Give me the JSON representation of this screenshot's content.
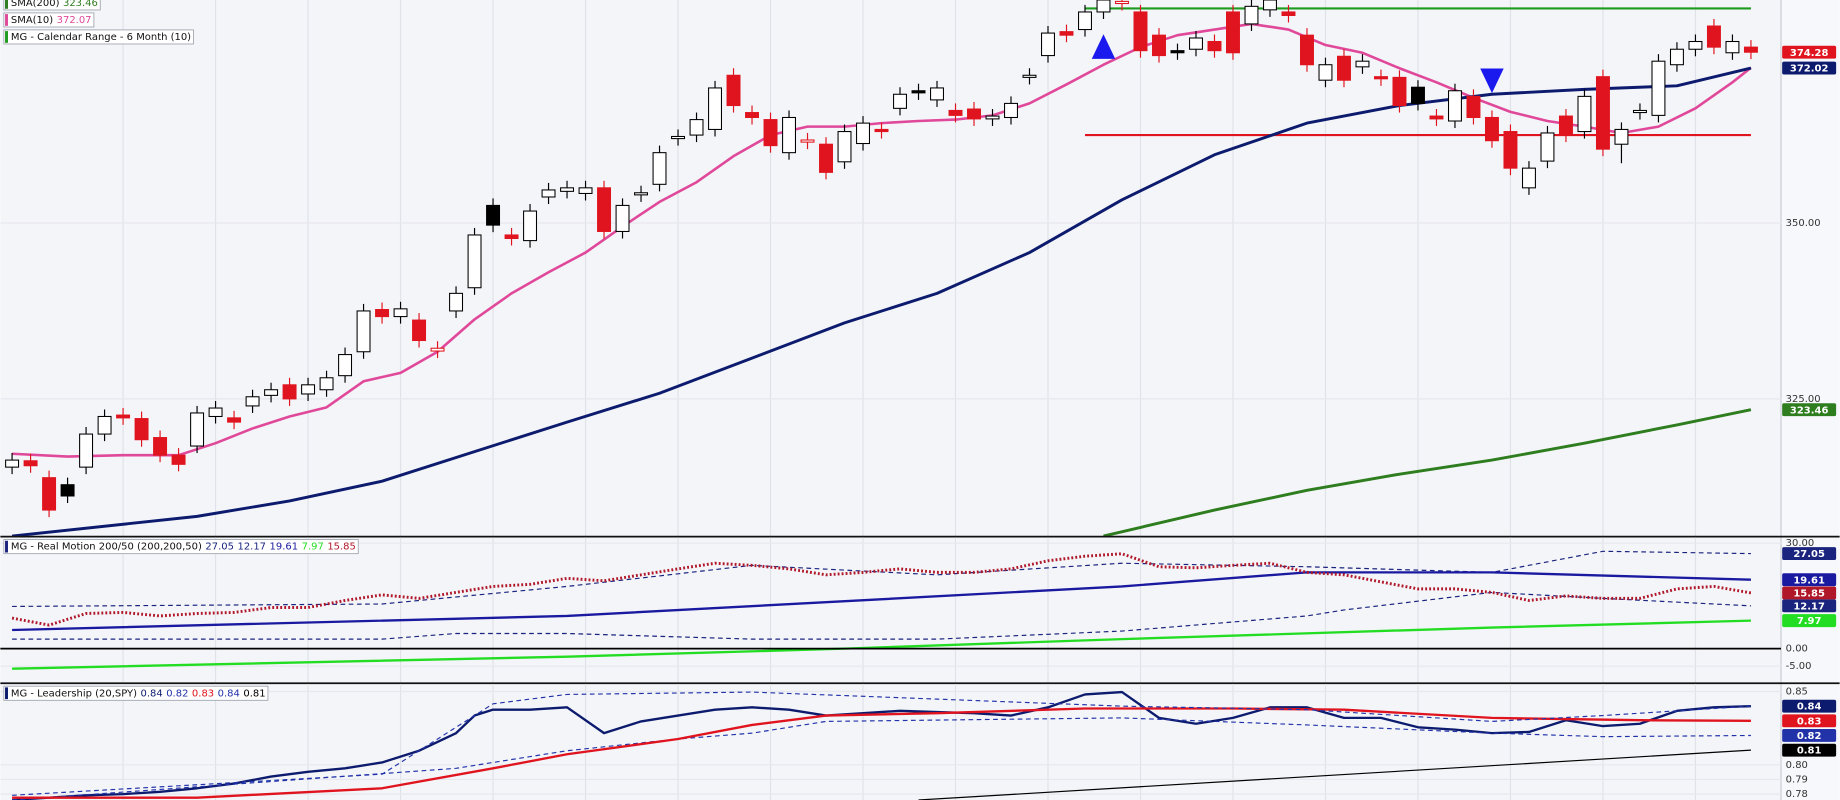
{
  "chart_data": [
    {
      "type": "candlestick",
      "ylim": [
        305.5,
        381.7
      ],
      "yticks": [
        {
          "value": 325,
          "label": "325.00"
        },
        {
          "value": 350,
          "label": "350.00"
        }
      ],
      "up_color": "#000000",
      "down_color": "#e0141e",
      "hollow_fill": "#ffffff",
      "open": [
        315.3,
        316.2,
        313.8,
        312.8,
        315.3,
        320.0,
        322.7,
        322.2,
        319.5,
        317.0,
        318.3,
        322.5,
        322.3,
        324.0,
        325.5,
        327.0,
        325.7,
        326.3,
        328.3,
        331.7,
        337.7,
        336.7,
        336.2,
        331.8,
        337.5,
        340.8,
        352.5,
        348.3,
        347.5,
        353.7,
        354.5,
        354.2,
        355.0,
        348.8,
        354.0,
        355.5,
        362.0,
        362.5,
        363.3,
        371.0,
        365.7,
        364.7,
        360.0,
        361.5,
        361.2,
        358.7,
        361.3,
        363.3,
        366.3,
        368.8,
        367.5,
        366.0,
        366.2,
        364.8,
        365.0,
        370.7,
        373.8,
        377.2,
        377.5,
        380.0,
        381.2,
        380.0,
        376.7,
        374.5,
        374.7,
        375.8,
        380.0,
        378.3,
        380.3,
        380.0,
        376.7,
        370.3,
        373.7,
        372.2,
        370.8,
        370.7,
        369.3,
        365.2,
        364.5,
        368.0,
        365.0,
        363.0,
        355.0,
        358.8,
        365.2,
        363.0,
        370.8,
        361.2,
        365.7,
        365.3,
        372.5,
        374.7,
        378.0,
        374.2,
        375.0
      ],
      "high": [
        317.3,
        317.2,
        314.8,
        313.8,
        321.0,
        323.5,
        323.7,
        323.2,
        320.5,
        318.0,
        324.0,
        324.7,
        323.3,
        326.3,
        327.3,
        328.0,
        328.0,
        329.0,
        332.3,
        338.5,
        338.7,
        338.8,
        337.2,
        333.2,
        341.0,
        349.3,
        353.5,
        349.3,
        352.7,
        355.7,
        356.0,
        356.0,
        356.0,
        353.5,
        355.3,
        361.0,
        363.3,
        365.7,
        370.2,
        372.0,
        366.7,
        365.7,
        366.0,
        362.8,
        362.2,
        364.0,
        365.2,
        364.3,
        369.3,
        369.8,
        370.2,
        367.0,
        367.2,
        366.2,
        368.0,
        372.0,
        378.0,
        378.2,
        381.0,
        382.5,
        382.5,
        381.0,
        377.7,
        375.5,
        377.3,
        376.8,
        381.0,
        381.8,
        382.5,
        381.0,
        377.7,
        373.5,
        374.7,
        374.0,
        371.8,
        371.7,
        370.3,
        366.2,
        369.8,
        369.0,
        366.0,
        364.0,
        358.8,
        363.8,
        366.2,
        369.0,
        371.8,
        364.3,
        367.0,
        374.0,
        375.7,
        376.8,
        379.0,
        376.8,
        376.0
      ],
      "low": [
        314.3,
        314.5,
        308.2,
        310.2,
        314.3,
        319.0,
        321.3,
        318.2,
        316.0,
        314.7,
        317.3,
        321.5,
        320.7,
        323.0,
        324.5,
        324.0,
        324.7,
        325.3,
        327.3,
        330.7,
        335.7,
        335.7,
        332.3,
        330.8,
        336.5,
        339.8,
        348.7,
        346.8,
        346.5,
        352.7,
        353.5,
        353.2,
        347.8,
        347.8,
        353.0,
        354.5,
        361.0,
        361.5,
        362.3,
        365.7,
        364.0,
        360.0,
        359.0,
        360.5,
        356.2,
        357.7,
        360.3,
        362.0,
        365.3,
        367.5,
        366.5,
        364.3,
        363.8,
        363.8,
        364.0,
        369.7,
        372.8,
        375.7,
        376.5,
        379.0,
        380.2,
        373.5,
        372.8,
        373.2,
        373.7,
        373.5,
        373.2,
        377.3,
        379.3,
        378.5,
        371.5,
        369.3,
        369.3,
        371.2,
        369.5,
        365.7,
        366.0,
        363.8,
        363.5,
        364.0,
        360.7,
        356.8,
        354.0,
        357.8,
        361.5,
        362.0,
        359.5,
        358.5,
        364.7,
        364.3,
        371.5,
        373.7,
        374.0,
        373.2,
        373.3
      ],
      "close": [
        316.3,
        315.5,
        309.2,
        311.2,
        320.0,
        322.5,
        322.3,
        319.2,
        317.0,
        315.7,
        323.0,
        323.7,
        321.7,
        325.3,
        326.3,
        325.0,
        327.0,
        328.0,
        331.3,
        337.5,
        336.7,
        337.8,
        333.3,
        332.2,
        340.0,
        348.3,
        349.7,
        347.8,
        351.7,
        354.7,
        355.0,
        355.0,
        348.8,
        352.5,
        354.3,
        360.0,
        362.3,
        364.7,
        369.2,
        366.7,
        365.0,
        361.0,
        365.0,
        361.8,
        357.2,
        363.0,
        364.2,
        363.0,
        368.3,
        368.5,
        369.2,
        365.3,
        364.8,
        365.2,
        367.0,
        371.0,
        377.0,
        376.7,
        380.0,
        381.7,
        381.5,
        374.5,
        373.8,
        374.2,
        376.3,
        374.5,
        374.2,
        380.8,
        381.7,
        379.5,
        372.5,
        372.5,
        370.3,
        373.0,
        370.5,
        366.7,
        367.0,
        364.8,
        368.8,
        365.0,
        361.7,
        357.8,
        357.8,
        362.8,
        362.5,
        368.0,
        360.5,
        363.3,
        366.0,
        373.0,
        374.7,
        375.8,
        375.0,
        375.8,
        374.28
      ],
      "series": [
        {
          "name": "SMA(200)",
          "color": "#2e7d1e",
          "width": 2.5,
          "style": "solid",
          "axis_box": true,
          "x": [
            59,
            65,
            70,
            75,
            80,
            85,
            90,
            94
          ],
          "values": [
            305.5,
            309.2,
            312.0,
            314.3,
            316.3,
            318.7,
            321.3,
            323.46
          ]
        },
        {
          "name": "SMA(10)",
          "color": "#e0489a",
          "width": 2.2,
          "style": "solid",
          "axis_box": false,
          "x": [
            0,
            3,
            6,
            9,
            11,
            13,
            15,
            17,
            19,
            21,
            23,
            25,
            27,
            29,
            31,
            33,
            35,
            37,
            39,
            41,
            43,
            45,
            47,
            49,
            51,
            53,
            55,
            57,
            59,
            61,
            63,
            65,
            67,
            69,
            71,
            73,
            75,
            77,
            79,
            81,
            83,
            85,
            87,
            89,
            91,
            93,
            94
          ],
          "values": [
            317.2,
            316.8,
            317.0,
            317.0,
            318.7,
            320.8,
            322.5,
            323.8,
            327.5,
            328.7,
            331.7,
            336.3,
            340.0,
            343.0,
            345.8,
            349.5,
            353.0,
            355.8,
            359.5,
            362.5,
            363.7,
            363.7,
            364.2,
            364.5,
            364.7,
            365.3,
            367.0,
            369.7,
            372.5,
            375.0,
            376.7,
            377.5,
            378.3,
            377.5,
            375.3,
            374.2,
            372.0,
            370.0,
            367.8,
            365.8,
            364.5,
            363.7,
            362.8,
            363.7,
            366.3,
            370.0,
            372.07
          ]
        },
        {
          "color": "#0d1b6e",
          "width": 2.5,
          "style": "solid",
          "axis_box": true,
          "x": [
            0,
            10,
            15,
            20,
            25,
            30,
            35,
            40,
            45,
            50,
            55,
            60,
            65,
            70,
            75,
            80,
            85,
            90,
            94
          ],
          "values": [
            305.5,
            308.3,
            310.5,
            313.3,
            317.5,
            321.7,
            325.8,
            330.8,
            335.8,
            340.0,
            345.8,
            353.3,
            359.7,
            364.2,
            366.7,
            368.3,
            369.0,
            369.5,
            372.02
          ]
        }
      ],
      "ranges": [
        {
          "name": "MG - Calendar Range - 6 Month (10)",
          "color": "#1e9a1e",
          "low_color": "#e0141e",
          "x": [
            58,
            94
          ],
          "high": 380.5,
          "low": 362.5
        }
      ],
      "signal_color": "#1a1aee",
      "signals": [
        {
          "x": 59,
          "direction": "up",
          "value": 375.0
        },
        {
          "x": 80,
          "direction": "down",
          "value": 370.3
        }
      ]
    },
    {
      "type": "line",
      "title": "MG - Real Motion 200/50 (200,200,50)",
      "ylim": [
        -9.7,
        31.7
      ],
      "yticks": [
        {
          "value": 30,
          "label": "30.00"
        },
        {
          "value": 0,
          "label": "0.00"
        },
        {
          "value": -5,
          "label": "-5.00"
        }
      ],
      "zero_line": true,
      "series": [
        {
          "color": "#1a237e",
          "width": 1,
          "style": "dashed",
          "axis_box": true,
          "x": [
            0,
            20,
            30,
            40,
            50,
            60,
            70,
            80,
            86,
            94
          ],
          "values": [
            12.0,
            12.7,
            17.7,
            23.7,
            21.0,
            24.3,
            23.3,
            21.7,
            27.7,
            27.05
          ]
        },
        {
          "color": "#1a237e",
          "width": 1,
          "style": "dashed",
          "axis_box": true,
          "x": [
            0,
            20,
            24,
            30,
            40,
            50,
            60,
            70,
            72,
            80,
            86,
            94
          ],
          "values": [
            2.7,
            2.7,
            4.3,
            4.3,
            2.7,
            2.7,
            5.0,
            9.3,
            11.0,
            16.0,
            14.3,
            12.17
          ]
        },
        {
          "color": "#1a1aa0",
          "width": 2,
          "style": "solid",
          "axis_box": true,
          "x": [
            0,
            30,
            60,
            70,
            80,
            94
          ],
          "values": [
            5.3,
            9.3,
            17.7,
            21.7,
            21.7,
            19.61
          ]
        },
        {
          "color": "#22dd22",
          "width": 2,
          "style": "solid",
          "axis_box": true,
          "x": [
            0,
            30,
            45,
            60,
            80,
            94
          ],
          "values": [
            -5.7,
            -2.3,
            0,
            2.7,
            6.0,
            7.97
          ]
        },
        {
          "color": "#b0182a",
          "width": 2.5,
          "style": "dotted",
          "axis_box": true,
          "x": [
            0,
            2,
            4,
            6,
            8,
            10,
            12,
            14,
            16,
            18,
            20,
            22,
            24,
            26,
            28,
            30,
            32,
            34,
            36,
            38,
            40,
            42,
            44,
            46,
            48,
            50,
            52,
            54,
            56,
            58,
            60,
            62,
            64,
            66,
            68,
            70,
            72,
            74,
            76,
            78,
            80,
            82,
            84,
            86,
            88,
            90,
            92,
            94
          ],
          "values": [
            8.7,
            6.7,
            10.0,
            10.3,
            9.3,
            10.0,
            10.3,
            11.7,
            11.7,
            13.7,
            15.3,
            14.3,
            16.0,
            17.7,
            18.3,
            20.0,
            19.3,
            21.0,
            22.7,
            24.3,
            23.7,
            22.7,
            21.0,
            21.7,
            22.7,
            21.7,
            21.7,
            22.7,
            25.0,
            26.3,
            27.0,
            23.3,
            23.0,
            23.7,
            24.3,
            21.7,
            21.0,
            19.0,
            17.0,
            17.0,
            16.0,
            13.7,
            15.0,
            14.3,
            14.3,
            17.0,
            17.7,
            15.85
          ]
        }
      ]
    },
    {
      "type": "line",
      "title": "MG - Leadership (20,SPY)",
      "ylim": [
        0.776,
        0.8552
      ],
      "yticks": [
        0.85,
        {
          "value": 0.8,
          "label": "0.80"
        },
        0.79,
        0.78
      ],
      "series": [
        {
          "color": "#0d1b6e",
          "width": 2,
          "style": "solid",
          "axis_box": true,
          "x": [
            0,
            4,
            6,
            8,
            10,
            12,
            14,
            16,
            18,
            20,
            22,
            24,
            25,
            26,
            28,
            30,
            32,
            34,
            36,
            38,
            40,
            42,
            44,
            46,
            48,
            50,
            52,
            54,
            56,
            58,
            60,
            62,
            64,
            66,
            68,
            70,
            72,
            74,
            76,
            78,
            80,
            82,
            84,
            86,
            88,
            90,
            92,
            94
          ],
          "values": [
            0.776,
            0.7792,
            0.78,
            0.7816,
            0.784,
            0.7872,
            0.792,
            0.7952,
            0.7976,
            0.8016,
            0.8096,
            0.8216,
            0.8336,
            0.8376,
            0.8376,
            0.8392,
            0.8216,
            0.8296,
            0.8336,
            0.8376,
            0.8392,
            0.8376,
            0.8336,
            0.8352,
            0.8368,
            0.836,
            0.8352,
            0.8336,
            0.8392,
            0.848,
            0.8496,
            0.832,
            0.828,
            0.832,
            0.8392,
            0.8392,
            0.832,
            0.832,
            0.8256,
            0.824,
            0.8216,
            0.8224,
            0.8304,
            0.8264,
            0.828,
            0.8368,
            0.8392,
            0.84
          ]
        },
        {
          "color": "#2233aa",
          "width": 1,
          "style": "dashed",
          "axis_box": true,
          "x": [
            0,
            24,
            30,
            36,
            40,
            44,
            60,
            70,
            80,
            86,
            94
          ],
          "values": [
            0.776,
            0.7976,
            0.8096,
            0.8176,
            0.8216,
            0.8296,
            0.832,
            0.8272,
            0.8216,
            0.8192,
            0.82
          ]
        },
        {
          "color": "#e0141e",
          "width": 2,
          "style": "solid",
          "axis_box": true,
          "x": [
            0,
            10,
            20,
            26,
            30,
            36,
            40,
            44,
            50,
            58,
            66,
            72,
            80,
            88,
            94
          ],
          "values": [
            0.7776,
            0.7776,
            0.784,
            0.7976,
            0.8072,
            0.8176,
            0.8272,
            0.8336,
            0.8352,
            0.8384,
            0.8384,
            0.8376,
            0.832,
            0.8304,
            0.83
          ]
        },
        {
          "color": "#2233aa",
          "width": 1,
          "style": "dashed",
          "axis_box": false,
          "x": [
            0,
            20,
            26,
            30,
            40,
            50,
            60,
            70,
            80,
            86,
            94
          ],
          "values": [
            0.7792,
            0.7936,
            0.8416,
            0.848,
            0.8496,
            0.8448,
            0.84,
            0.8376,
            0.8296,
            0.8336,
            0.84
          ]
        },
        {
          "color": "#000000",
          "width": 1,
          "style": "solid",
          "axis_box": true,
          "x": [
            49,
            94
          ],
          "values": [
            0.776,
            0.81
          ]
        }
      ]
    }
  ]
}
